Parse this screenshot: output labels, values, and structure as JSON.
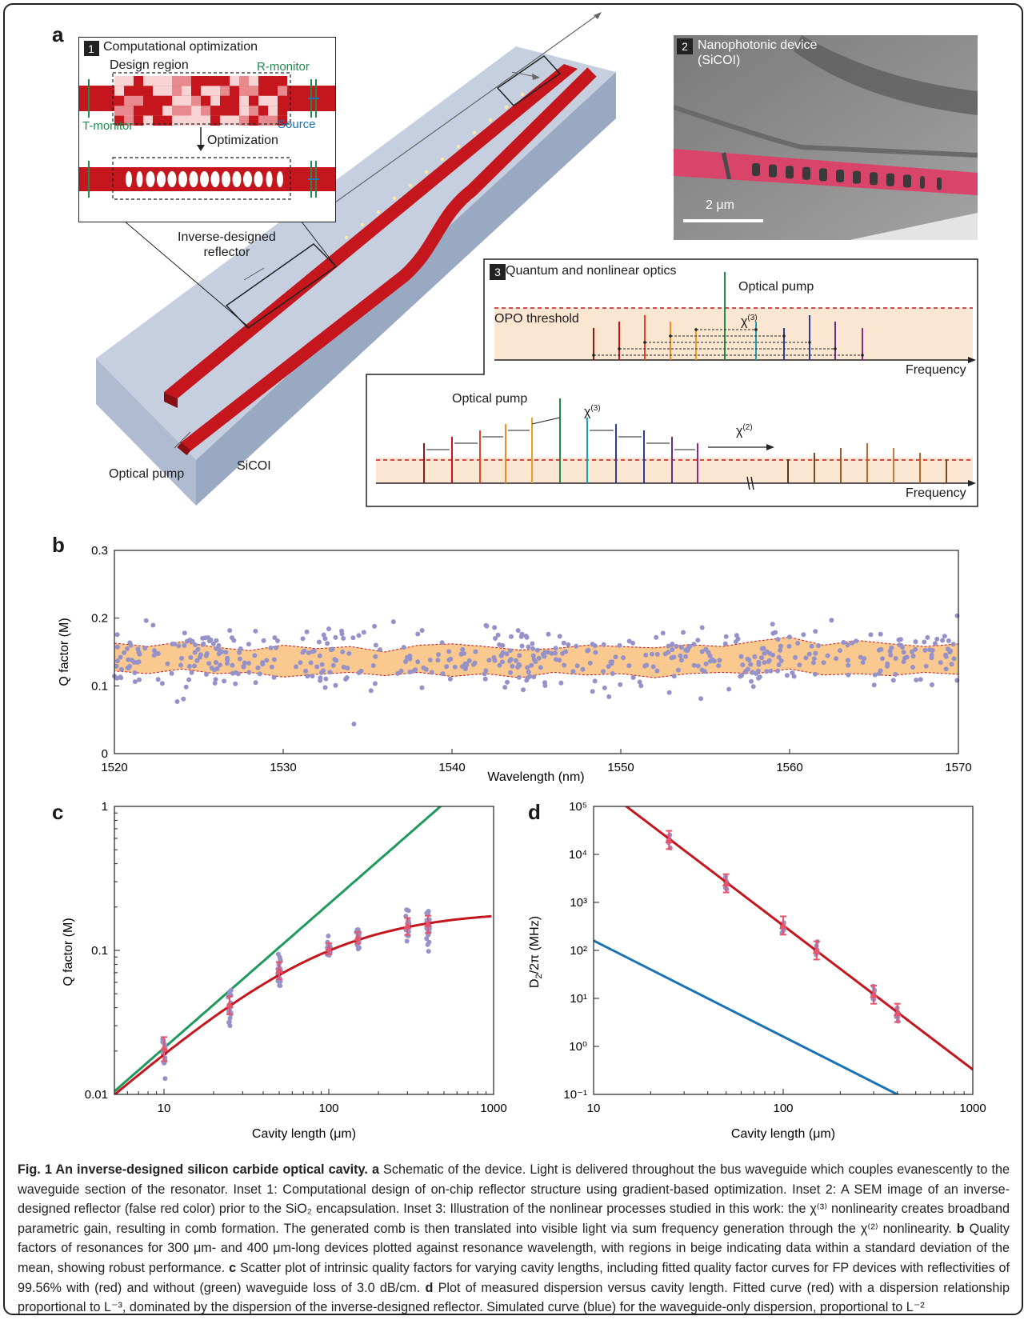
{
  "panel_letters": {
    "a": "a",
    "b": "b",
    "c": "c",
    "d": "d"
  },
  "panel_a": {
    "inset1": {
      "number": "1",
      "title": "Computational optimization",
      "design_region": "Design region",
      "r_monitor": "R-monitor",
      "t_monitor": "T-monitor",
      "source": "Source",
      "optimization": "Optimization"
    },
    "reflector_label_line1": "Inverse-designed",
    "reflector_label_line2": "reflector",
    "optical_pump": "Optical pump",
    "sicoi": "SiCOI",
    "inset2": {
      "number": "2",
      "title_line1": "Nanophotonic device",
      "title_line2": "(SiCOI)",
      "scale_bar": "2 μm"
    },
    "inset3": {
      "number": "3",
      "title": "Quantum and nonlinear optics",
      "optical_pump_upper": "Optical pump",
      "opo_threshold": "OPO threshold",
      "chi3_upper": "χ",
      "chi3_sup": "(3)",
      "frequency_upper": "Frequency",
      "optical_pump_lower": "Optical pump",
      "chi3_lower": "χ",
      "chi2_lower": "χ",
      "chi2_sup": "(2)",
      "frequency_lower": "Frequency"
    },
    "colors": {
      "waveguide": "#c4161c",
      "substrate": "#c8d1e2",
      "opo_band": "#fbe6d2",
      "threshold": "#c4161c"
    }
  },
  "chart_data": [
    {
      "panel": "b",
      "type": "scatter",
      "xlabel": "Wavelength (nm)",
      "ylabel": "Q factor (M)",
      "xlim": [
        1520,
        1570
      ],
      "ylim": [
        0,
        0.3
      ],
      "xticks": [
        "1520",
        "1530",
        "1540",
        "1550",
        "1560",
        "1570"
      ],
      "yticks": [
        "0",
        "0.1",
        "0.2",
        "0.3"
      ],
      "band": {
        "x": [
          1520,
          1522,
          1524,
          1526,
          1528,
          1530,
          1532,
          1534,
          1536,
          1538,
          1540,
          1542,
          1544,
          1546,
          1548,
          1550,
          1552,
          1554,
          1556,
          1558,
          1560,
          1562,
          1564,
          1566,
          1568,
          1570
        ],
        "upper": [
          0.163,
          0.158,
          0.165,
          0.157,
          0.152,
          0.16,
          0.155,
          0.158,
          0.15,
          0.16,
          0.162,
          0.158,
          0.153,
          0.155,
          0.16,
          0.158,
          0.156,
          0.161,
          0.158,
          0.166,
          0.172,
          0.16,
          0.167,
          0.162,
          0.158,
          0.162
        ],
        "lower": [
          0.122,
          0.118,
          0.125,
          0.118,
          0.12,
          0.113,
          0.117,
          0.12,
          0.115,
          0.12,
          0.114,
          0.118,
          0.112,
          0.12,
          0.116,
          0.118,
          0.112,
          0.118,
          0.12,
          0.118,
          0.125,
          0.116,
          0.118,
          0.115,
          0.12,
          0.117
        ]
      },
      "points": {
        "count": 520,
        "mean": 0.14,
        "sd": 0.022,
        "seed": 7
      },
      "colors": {
        "points": "#9592c9",
        "band": "#f9c98f",
        "band_edge": "#c4161c"
      }
    },
    {
      "panel": "c",
      "type": "scatter",
      "xlabel": "Cavity length (μm)",
      "ylabel": "Q factor (M)",
      "xscale": "log",
      "yscale": "log",
      "xlim": [
        5,
        1000
      ],
      "ylim": [
        0.01,
        1
      ],
      "xticks": [
        "10",
        "100",
        "1000"
      ],
      "yticks": [
        "0.01",
        "0.1",
        "1"
      ],
      "lengths": [
        10,
        25,
        50,
        100,
        150,
        300,
        400
      ],
      "means": [
        0.021,
        0.042,
        0.073,
        0.103,
        0.123,
        0.148,
        0.153
      ],
      "spread": [
        0.008,
        0.012,
        0.02,
        0.018,
        0.023,
        0.04,
        0.042
      ],
      "fit_red": {
        "reflectivity": 0.9956,
        "loss_db_per_cm": 3.0
      },
      "fit_green": {
        "reflectivity": 0.9956,
        "loss_db_per_cm": 0
      },
      "colors": {
        "points": "#9592c9",
        "red": "#c4161c",
        "green": "#1f9a5a",
        "marker": "#e8536b"
      }
    },
    {
      "panel": "d",
      "type": "scatter",
      "xlabel": "Cavity length (μm)",
      "ylabel": "D2/2π (MHz)",
      "ylabel_parts": {
        "d": "D",
        "sub": "2",
        "rest": "/2π (MHz)"
      },
      "xscale": "log",
      "yscale": "log",
      "xlim": [
        10,
        1000
      ],
      "ylim": [
        0.1,
        100000
      ],
      "xticks": [
        "10",
        "100",
        "1000"
      ],
      "yticks": [
        "10⁻¹",
        "10⁰",
        "10¹",
        "10²",
        "10³",
        "10⁴",
        "10⁵"
      ],
      "lengths": [
        25,
        50,
        100,
        150,
        300,
        400
      ],
      "means": [
        20000,
        2500,
        330,
        100,
        12,
        5
      ],
      "fit_red": {
        "proportional_to": "L⁻³",
        "value_at_100": 330
      },
      "fit_blue": {
        "proportional_to": "L⁻²",
        "value_at_10": 160
      },
      "colors": {
        "points": "#9592c9",
        "red": "#c4161c",
        "blue": "#1a73b5",
        "marker": "#e8536b"
      }
    }
  ],
  "caption": {
    "fig_label": "Fig. 1 An inverse-designed silicon carbide optical cavity.",
    "a_letter": "a",
    "a_text": " Schematic of the device. Light is delivered throughout the bus waveguide which couples evanescently to the waveguide section of the resonator. Inset 1: Computational design of on-chip reflector structure using gradient-based optimization. Inset 2: A SEM image of an inverse-designed reflector (false red color) prior to the SiO₂ encapsulation. Inset 3: Illustration of the nonlinear processes studied in this work: the χ⁽³⁾ nonlinearity creates broadband parametric gain, resulting in comb formation. The generated comb is then translated into visible light via sum frequency generation through the χ⁽²⁾ nonlinearity. ",
    "b_letter": "b",
    "b_text": " Quality factors of resonances for 300 μm- and 400 μm-long devices plotted against resonance wavelength, with regions in beige indicating data within a standard deviation of the mean, showing robust performance. ",
    "c_letter": "c",
    "c_text": " Scatter plot of intrinsic quality factors for varying cavity lengths, including fitted quality factor curves for FP devices with reflectivities of 99.56% with (red) and without (green) waveguide loss of 3.0 dB/cm. ",
    "d_letter": "d",
    "d_text": " Plot of measured dispersion versus cavity length. Fitted curve (red) with a dispersion relationship proportional to L⁻³, dominated by the dispersion of the inverse-designed reflector. Simulated curve (blue) for the waveguide-only dispersion, proportional to L⁻²"
  }
}
